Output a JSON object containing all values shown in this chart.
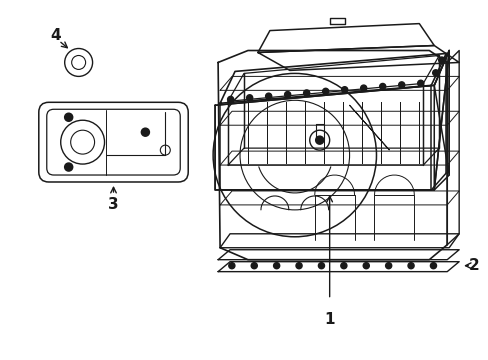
{
  "bg_color": "#ffffff",
  "line_color": "#1a1a1a",
  "line_width": 1.1,
  "fig_width": 4.89,
  "fig_height": 3.6,
  "dpi": 100
}
